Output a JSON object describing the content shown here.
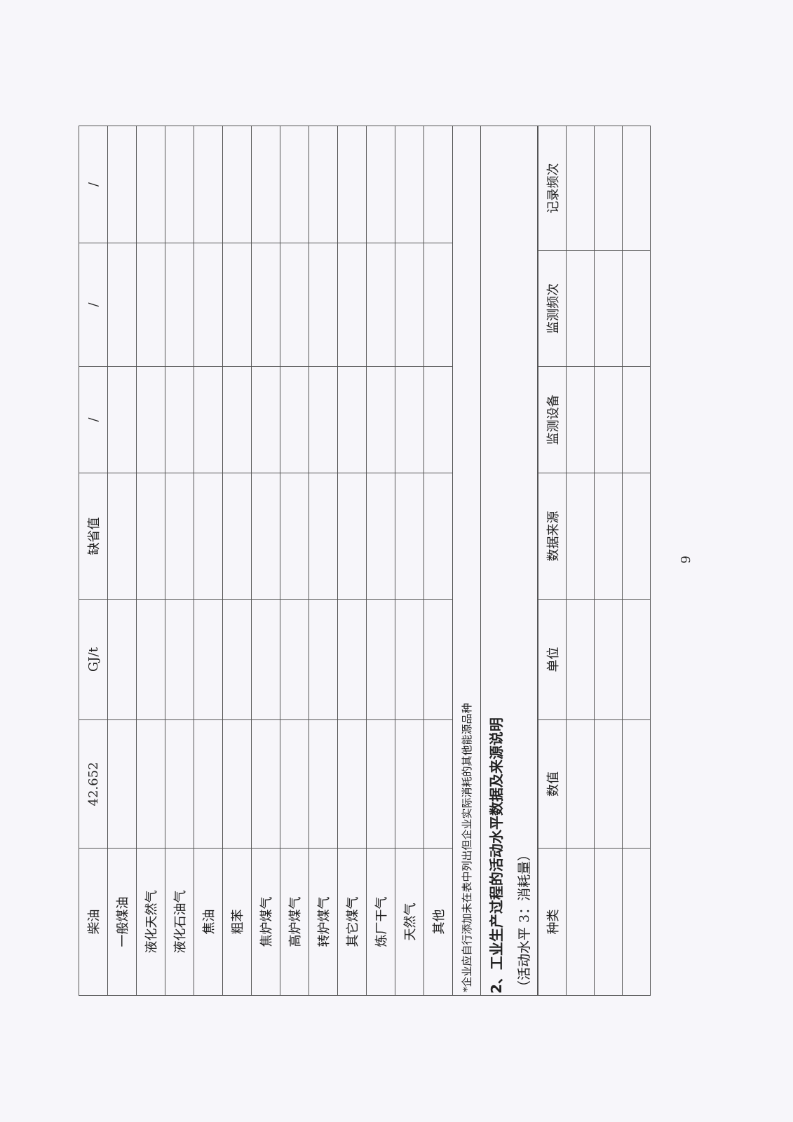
{
  "table1": {
    "rows": [
      {
        "name": "柴油",
        "value": "42.652",
        "unit": "GJ/t",
        "source": "缺省值",
        "c5": "/",
        "c6": "/",
        "c7": "/"
      },
      {
        "name": "一般煤油",
        "value": "",
        "unit": "",
        "source": "",
        "c5": "",
        "c6": "",
        "c7": ""
      },
      {
        "name": "液化天然气",
        "value": "",
        "unit": "",
        "source": "",
        "c5": "",
        "c6": "",
        "c7": ""
      },
      {
        "name": "液化石油气",
        "value": "",
        "unit": "",
        "source": "",
        "c5": "",
        "c6": "",
        "c7": ""
      },
      {
        "name": "焦油",
        "value": "",
        "unit": "",
        "source": "",
        "c5": "",
        "c6": "",
        "c7": ""
      },
      {
        "name": "粗苯",
        "value": "",
        "unit": "",
        "source": "",
        "c5": "",
        "c6": "",
        "c7": ""
      },
      {
        "name": "焦炉煤气",
        "value": "",
        "unit": "",
        "source": "",
        "c5": "",
        "c6": "",
        "c7": ""
      },
      {
        "name": "高炉煤气",
        "value": "",
        "unit": "",
        "source": "",
        "c5": "",
        "c6": "",
        "c7": ""
      },
      {
        "name": "转炉煤气",
        "value": "",
        "unit": "",
        "source": "",
        "c5": "",
        "c6": "",
        "c7": ""
      },
      {
        "name": "其它煤气",
        "value": "",
        "unit": "",
        "source": "",
        "c5": "",
        "c6": "",
        "c7": ""
      },
      {
        "name": "炼厂干气",
        "value": "",
        "unit": "",
        "source": "",
        "c5": "",
        "c6": "",
        "c7": ""
      },
      {
        "name": "天然气",
        "value": "",
        "unit": "",
        "source": "",
        "c5": "",
        "c6": "",
        "c7": ""
      },
      {
        "name": "其他",
        "value": "",
        "unit": "",
        "source": "",
        "c5": "",
        "c6": "",
        "c7": ""
      }
    ],
    "footnote": "*企业应自行添加未在表中列出但企业实际消耗的其他能源品种"
  },
  "section": {
    "heading": "2、工业生产过程的活动水平数据及来源说明",
    "subheading": "（活动水平 3：消耗量）"
  },
  "table2": {
    "headers": [
      "种类",
      "数值",
      "单位",
      "数据来源",
      "监测设备",
      "监测频次",
      "记录频次"
    ]
  },
  "page_number": "9"
}
